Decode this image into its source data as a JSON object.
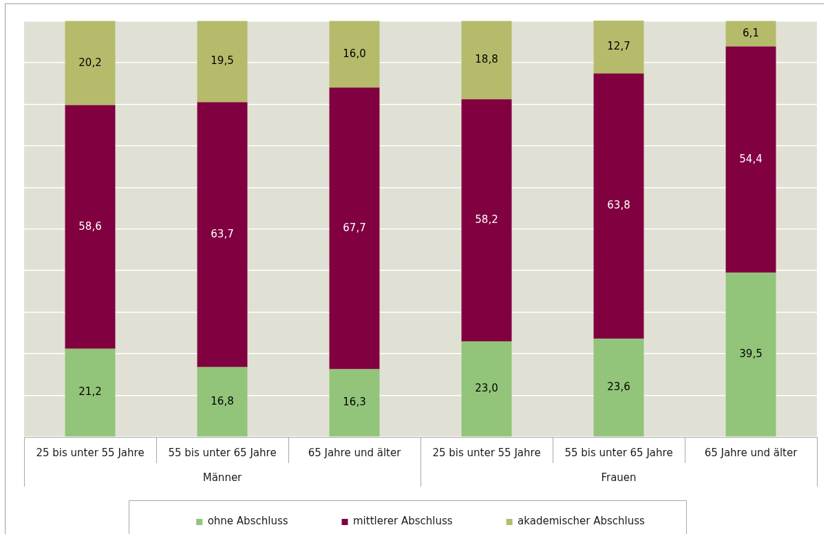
{
  "chart_data": {
    "type": "bar",
    "stacked": true,
    "categories": [
      "25 bis unter 55 Jahre",
      "55 bis unter 65 Jahre",
      "65 Jahre und älter",
      "25 bis unter 55 Jahre",
      "55 bis unter 65 Jahre",
      "65 Jahre und älter"
    ],
    "annotations": [
      "Männer",
      "Frauen"
    ],
    "series": [
      {
        "name": "ohne Abschluss",
        "color": "#92c47a",
        "values": [
          21.2,
          16.8,
          16.3,
          23.0,
          23.6,
          39.5
        ],
        "value_labels": [
          "21,2",
          "16,8",
          "16,3",
          "23,0",
          "23,6",
          "39,5"
        ]
      },
      {
        "name": "mittlerer Abschluss",
        "color": "#800040",
        "values": [
          58.6,
          63.7,
          67.7,
          58.2,
          63.8,
          54.4
        ],
        "value_labels": [
          "58,6",
          "63,7",
          "67,7",
          "58,2",
          "63,8",
          "54,4"
        ]
      },
      {
        "name": "akademischer Abschluss",
        "color": "#b5bb6a",
        "values": [
          20.2,
          19.5,
          16.0,
          18.8,
          12.7,
          6.1
        ],
        "value_labels": [
          "20,2",
          "19,5",
          "16,0",
          "18,8",
          "12,7",
          "6,1"
        ]
      }
    ],
    "ylim": [
      0,
      100.1
    ],
    "yticks": [
      {
        "value": 0,
        "label": null
      },
      {
        "value": 10,
        "label": null
      },
      {
        "value": 20,
        "label": null
      },
      {
        "value": 30,
        "label": null
      },
      {
        "value": 40,
        "label": null
      },
      {
        "value": 50,
        "label": null
      },
      {
        "value": 60,
        "label": null
      },
      {
        "value": 70,
        "label": null
      },
      {
        "value": 80,
        "label": null
      },
      {
        "value": 90,
        "label": null
      },
      {
        "value": 100,
        "label": null
      }
    ],
    "tick_labels": "x",
    "grid": "y",
    "legend": "bottom"
  }
}
